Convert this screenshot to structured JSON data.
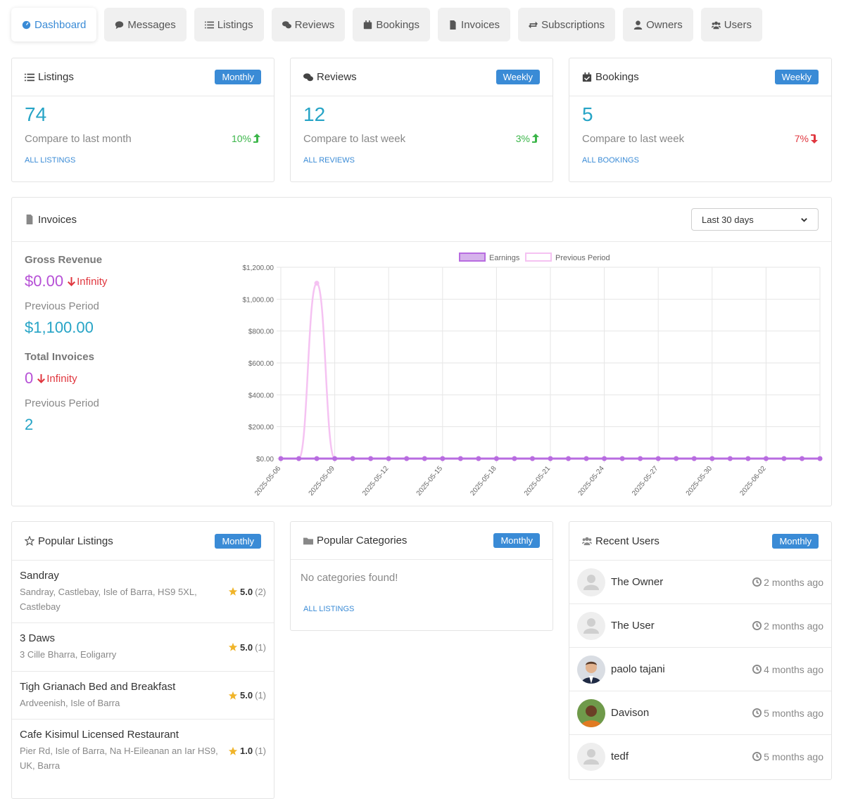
{
  "nav": [
    {
      "label": "Dashboard",
      "icon": "dashboard-icon",
      "active": true
    },
    {
      "label": "Messages",
      "icon": "chat-icon",
      "active": false
    },
    {
      "label": "Listings",
      "icon": "list-icon",
      "active": false
    },
    {
      "label": "Reviews",
      "icon": "comments-icon",
      "active": false
    },
    {
      "label": "Bookings",
      "icon": "calendar-icon",
      "active": false
    },
    {
      "label": "Invoices",
      "icon": "file-invoice-icon",
      "active": false
    },
    {
      "label": "Subscriptions",
      "icon": "repeat-icon",
      "active": false
    },
    {
      "label": "Owners",
      "icon": "user-icon",
      "active": false
    },
    {
      "label": "Users",
      "icon": "users-icon",
      "active": false
    }
  ],
  "stats": [
    {
      "title": "Listings",
      "badge": "Monthly",
      "value": "74",
      "compare": "Compare to last month",
      "pct": "10%",
      "trend": "up",
      "link": "ALL LISTINGS"
    },
    {
      "title": "Reviews",
      "badge": "Weekly",
      "value": "12",
      "compare": "Compare to last week",
      "pct": "3%",
      "trend": "up",
      "link": "ALL REVIEWS"
    },
    {
      "title": "Bookings",
      "badge": "Weekly",
      "value": "5",
      "compare": "Compare to last week",
      "pct": "7%",
      "trend": "down",
      "link": "ALL BOOKINGS"
    }
  ],
  "invoices": {
    "title": "Invoices",
    "range": "Last 30 days",
    "gross_label": "Gross Revenue",
    "gross_value": "$0.00",
    "gross_change": "Infinity",
    "prev_label": "Previous Period",
    "prev_value": "$1,100.00",
    "total_label": "Total Invoices",
    "total_value": "0",
    "total_change": "Infinity",
    "prev_label2": "Previous Period",
    "prev_total": "2"
  },
  "chart_data": {
    "type": "line",
    "title": "",
    "x": [
      "2025-05-06",
      "2025-05-07",
      "2025-05-08",
      "2025-05-09",
      "2025-05-10",
      "2025-05-11",
      "2025-05-12",
      "2025-05-13",
      "2025-05-14",
      "2025-05-15",
      "2025-05-16",
      "2025-05-17",
      "2025-05-18",
      "2025-05-19",
      "2025-05-20",
      "2025-05-21",
      "2025-05-22",
      "2025-05-23",
      "2025-05-24",
      "2025-05-25",
      "2025-05-26",
      "2025-05-27",
      "2025-05-28",
      "2025-05-29",
      "2025-05-30",
      "2025-05-31",
      "2025-06-01",
      "2025-06-02",
      "2025-06-03",
      "2025-06-04",
      "2025-06-05"
    ],
    "x_tick_labels": [
      "2025-05-06",
      "2025-05-09",
      "2025-05-12",
      "2025-05-15",
      "2025-05-18",
      "2025-05-21",
      "2025-05-24",
      "2025-05-27",
      "2025-05-30",
      "2025-06-02"
    ],
    "series": [
      {
        "name": "Earnings",
        "color": "#b86ce0",
        "values": [
          0,
          0,
          0,
          0,
          0,
          0,
          0,
          0,
          0,
          0,
          0,
          0,
          0,
          0,
          0,
          0,
          0,
          0,
          0,
          0,
          0,
          0,
          0,
          0,
          0,
          0,
          0,
          0,
          0,
          0,
          0
        ]
      },
      {
        "name": "Previous Period",
        "color": "#f5c2f2",
        "values": [
          0,
          0,
          1100,
          0,
          0,
          0,
          0,
          0,
          0,
          0,
          0,
          0,
          0,
          0,
          0,
          0,
          0,
          0,
          0,
          0,
          0,
          0,
          0,
          0,
          0,
          0,
          0,
          0,
          0,
          0,
          0
        ]
      }
    ],
    "y_ticks": [
      "$0.00",
      "$200.00",
      "$400.00",
      "$600.00",
      "$800.00",
      "$1,000.00",
      "$1,200.00"
    ],
    "ylim": [
      0,
      1200
    ],
    "legend": "top"
  },
  "popular_listings": {
    "title": "Popular Listings",
    "badge": "Monthly",
    "items": [
      {
        "name": "Sandray",
        "address": "Sandray, Castlebay, Isle of Barra, HS9 5XL, Castlebay",
        "rating": "5.0",
        "count": "(2)"
      },
      {
        "name": "3 Daws",
        "address": "3 Cille Bharra, Eoligarry",
        "rating": "5.0",
        "count": "(1)"
      },
      {
        "name": "Tigh Grianach Bed and Breakfast",
        "address": "Ardveenish, Isle of Barra",
        "rating": "5.0",
        "count": "(1)"
      },
      {
        "name": "Cafe Kisimul Licensed Restaurant",
        "address": "Pier Rd, Isle of Barra, Na H-Eileanan an Iar HS9, UK, Barra",
        "rating": "1.0",
        "count": "(1)"
      }
    ]
  },
  "popular_categories": {
    "title": "Popular Categories",
    "badge": "Monthly",
    "empty": "No categories found!",
    "link": "ALL LISTINGS"
  },
  "recent_users": {
    "title": "Recent Users",
    "badge": "Monthly",
    "items": [
      {
        "name": "The Owner",
        "time": "2 months ago",
        "avatar": "default"
      },
      {
        "name": "The User",
        "time": "2 months ago",
        "avatar": "default"
      },
      {
        "name": "paolo tajani",
        "time": "4 months ago",
        "avatar": "photo-suit"
      },
      {
        "name": "Davison",
        "time": "5 months ago",
        "avatar": "photo-orange"
      },
      {
        "name": "tedf",
        "time": "5 months ago",
        "avatar": "default"
      }
    ]
  }
}
